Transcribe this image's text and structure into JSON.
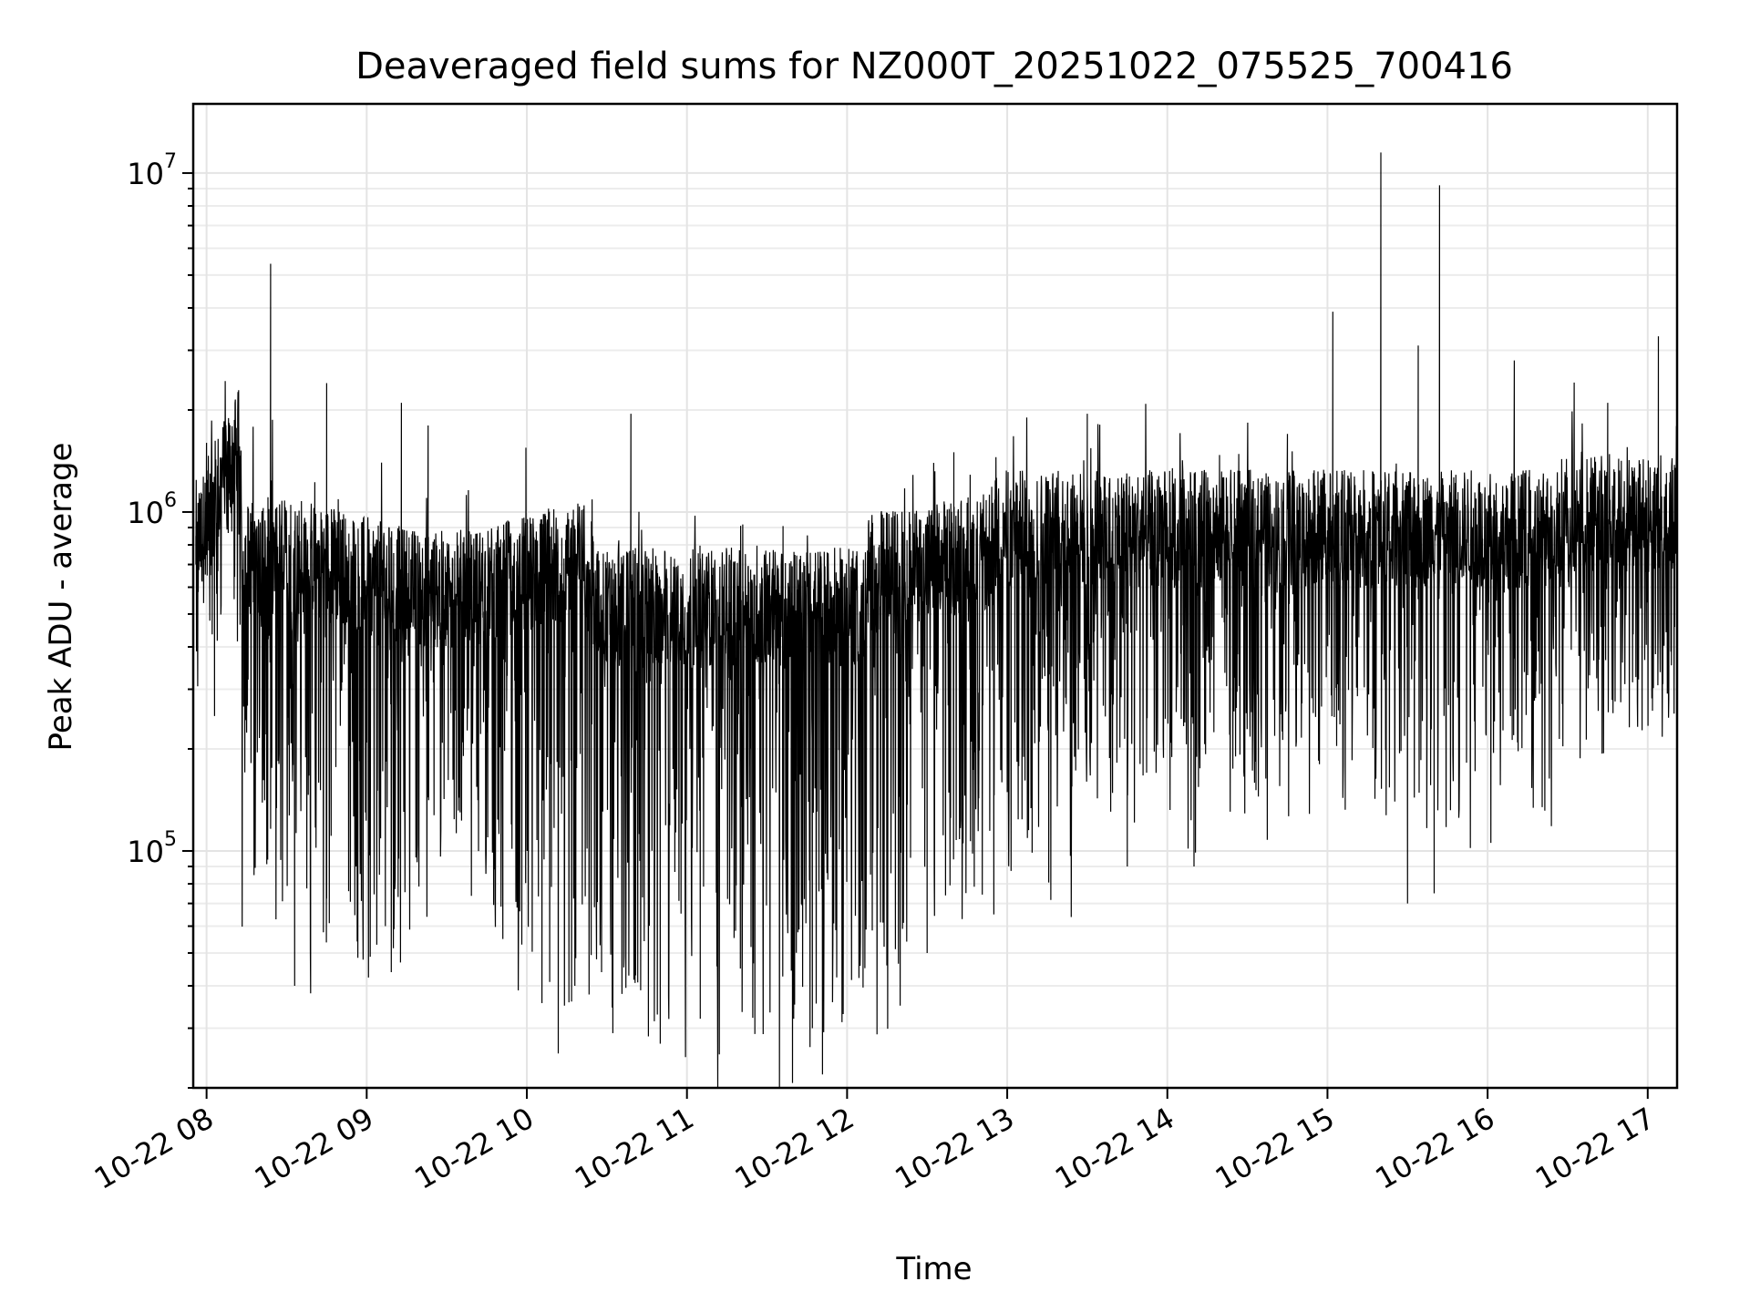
{
  "chart_data": {
    "type": "line",
    "title": "Deaveraged field sums for NZ000T_20251022_075525_700416",
    "xlabel": "Time",
    "ylabel": "Peak ADU - average",
    "yscale": "log",
    "ylim": [
      20000,
      16000000
    ],
    "xlim": [
      "2025-10-22 07:55",
      "2025-10-22 17:11"
    ],
    "grid": true,
    "line_color": "#000000",
    "x_ticks": [
      "10-22 08",
      "10-22 09",
      "10-22 10",
      "10-22 11",
      "10-22 12",
      "10-22 13",
      "10-22 14",
      "10-22 15",
      "10-22 16",
      "10-22 17"
    ],
    "y_ticks": [
      {
        "value": 100000,
        "base": "10",
        "exp": "5"
      },
      {
        "value": 1000000,
        "base": "10",
        "exp": "6"
      },
      {
        "value": 10000000,
        "base": "10",
        "exp": "7"
      }
    ],
    "series": [
      {
        "points": [
          [
            "2025-10-22 07:56",
            700000
          ],
          [
            "2025-10-22 08:00",
            1600000
          ],
          [
            "2025-10-22 08:03",
            250000
          ],
          [
            "2025-10-22 08:12",
            2200000
          ],
          [
            "2025-10-22 08:24",
            5400000
          ],
          [
            "2025-10-22 08:33",
            40000
          ],
          [
            "2025-10-22 08:39",
            38000
          ],
          [
            "2025-10-22 08:45",
            2400000
          ],
          [
            "2025-10-22 08:56",
            90000
          ],
          [
            "2025-10-22 09:07",
            60000
          ],
          [
            "2025-10-22 09:13",
            2100000
          ],
          [
            "2025-10-22 09:23",
            1800000
          ],
          [
            "2025-10-22 09:35",
            130000
          ],
          [
            "2025-10-22 09:51",
            55000
          ],
          [
            "2025-10-22 10:18",
            40000
          ],
          [
            "2025-10-22 10:39",
            1950000
          ],
          [
            "2025-10-22 10:50",
            27000
          ],
          [
            "2025-10-22 11:05",
            32000
          ],
          [
            "2025-10-22 11:20",
            45000
          ],
          [
            "2025-10-22 11:40",
            32000
          ],
          [
            "2025-10-22 11:47",
            30000
          ],
          [
            "2025-10-22 12:30",
            50000
          ],
          [
            "2025-10-22 12:40",
            1500000
          ],
          [
            "2025-10-22 12:55",
            65000
          ],
          [
            "2025-10-22 13:30",
            1950000
          ],
          [
            "2025-10-22 13:45",
            90000
          ],
          [
            "2025-10-22 14:10",
            90000
          ],
          [
            "2025-10-22 14:45",
            1700000
          ],
          [
            "2025-10-22 15:02",
            3900000
          ],
          [
            "2025-10-22 15:20",
            11500000
          ],
          [
            "2025-10-22 15:30",
            70000
          ],
          [
            "2025-10-22 15:34",
            3100000
          ],
          [
            "2025-10-22 15:40",
            75000
          ],
          [
            "2025-10-22 15:42",
            9200000
          ],
          [
            "2025-10-22 16:10",
            2800000
          ],
          [
            "2025-10-22 16:45",
            2100000
          ],
          [
            "2025-10-22 17:04",
            3300000
          ],
          [
            "2025-10-22 17:11",
            650000
          ]
        ]
      }
    ]
  }
}
